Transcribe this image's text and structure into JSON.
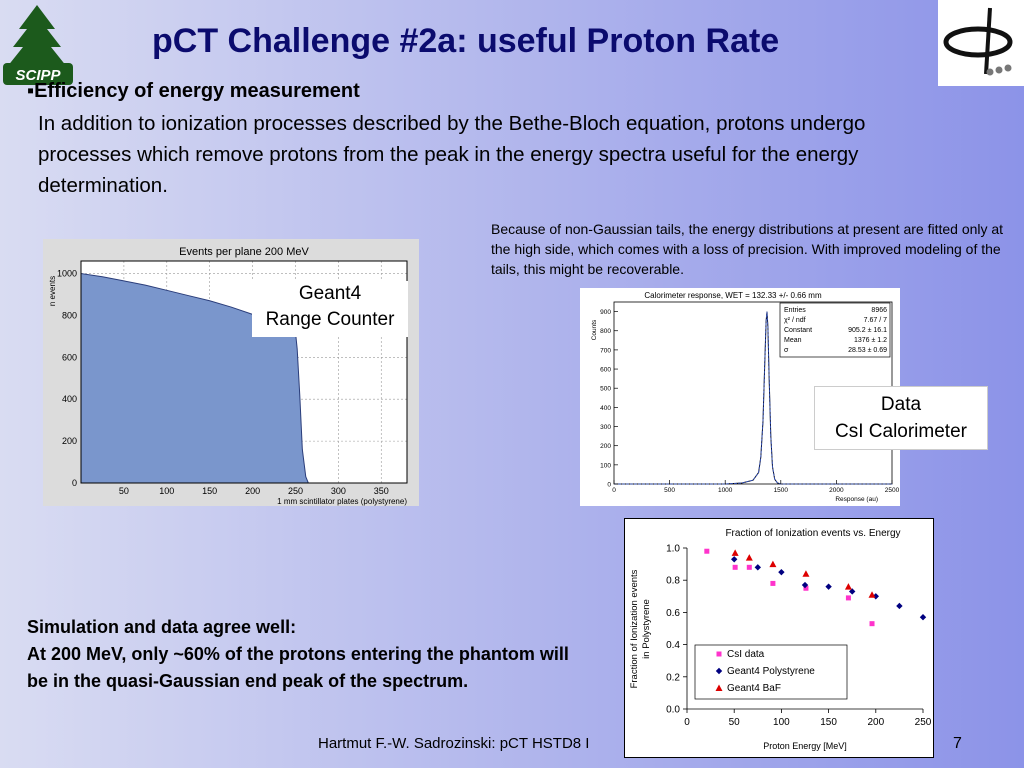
{
  "slide": {
    "title": "pCT Challenge #2a: useful Proton Rate",
    "bullet_marker": "▪",
    "bullet_heading": "Efficiency of energy measurement",
    "bullet_body": "In addition to ionization processes described by the Bethe-Bloch equation, protons undergo processes which remove protons from the peak in the energy spectra useful for the energy determination.",
    "note": "Because of non-Gaussian tails, the energy distributions at present are fitted only at the high side, which comes with a loss of precision. With improved modeling of the tails, this might be recoverable.",
    "sim_heading": "Simulation and data agree well:",
    "sim_body": "At 200 MeV, only ~60% of the protons entering the phantom will be in the quasi-Gaussian end peak of the spectrum.",
    "footer": "Hartmut F.-W. Sadrozinski: pCT HSTD8 I",
    "page_number": "7",
    "label_geant_line1": "Geant4",
    "label_geant_line2": "Range Counter",
    "label_data_line1": "Data",
    "label_data_line2": "CsI Calorimeter",
    "logo_text": "SCIPP"
  },
  "colors": {
    "title": "#0b0b6e",
    "hist_fill": "#7a96cc",
    "csi": "#ff33cc",
    "polystyrene": "#000080",
    "baf": "#dd0000"
  },
  "chart_data": [
    {
      "type": "area",
      "title": "Events per plane 200 MeV",
      "xlabel": "1 mm scintillator plates (polystyrene)",
      "ylabel": "n events",
      "xlim": [
        0,
        380
      ],
      "ylim": [
        0,
        1060
      ],
      "xticks": [
        50,
        100,
        150,
        200,
        250,
        300,
        350
      ],
      "yticks": [
        0,
        200,
        400,
        600,
        800,
        1000
      ],
      "x": [
        0,
        25,
        50,
        75,
        100,
        125,
        150,
        175,
        200,
        225,
        240,
        250,
        252,
        255,
        258,
        262,
        265,
        380
      ],
      "y": [
        1000,
        985,
        965,
        945,
        920,
        895,
        870,
        840,
        805,
        770,
        745,
        720,
        640,
        420,
        160,
        30,
        0,
        0
      ]
    },
    {
      "type": "line",
      "title": "Calorimeter response, WET = 132.33 +/- 0.66 mm",
      "xlabel": "Response (au)",
      "ylabel": "Counts",
      "xlim": [
        0,
        2500
      ],
      "ylim": [
        0,
        950
      ],
      "xticks": [
        0,
        500,
        1000,
        1500,
        2000,
        2500
      ],
      "yticks": [
        0,
        100,
        200,
        300,
        400,
        500,
        600,
        700,
        800,
        900
      ],
      "x": [
        0,
        1000,
        1150,
        1250,
        1300,
        1320,
        1340,
        1355,
        1368,
        1376,
        1384,
        1395,
        1410,
        1425,
        1445,
        1470,
        1500,
        2500
      ],
      "y": [
        0,
        0,
        5,
        20,
        60,
        140,
        330,
        620,
        850,
        900,
        820,
        560,
        250,
        90,
        25,
        5,
        0,
        0
      ],
      "stats": [
        {
          "name": "Entries",
          "value": "8966"
        },
        {
          "name": "χ² / ndf",
          "value": "7.67 / 7"
        },
        {
          "name": "Constant",
          "value": "905.2 ± 16.1"
        },
        {
          "name": "Mean",
          "value": "1376 ± 1.2"
        },
        {
          "name": "σ",
          "value": "28.53 ± 0.69"
        }
      ]
    },
    {
      "type": "scatter",
      "title": "Fraction of Ionization events vs. Energy",
      "xlabel": "Proton Energy [MeV]",
      "ylabel": "Fraction of Ionization events in Polystyrene",
      "xlim": [
        0,
        250
      ],
      "ylim": [
        0,
        1.0
      ],
      "xticks": [
        0,
        50,
        100,
        150,
        200,
        250
      ],
      "yticks": [
        0.0,
        0.2,
        0.4,
        0.6,
        0.8,
        1.0
      ],
      "legend": "bottom-left",
      "series": [
        {
          "name": "CsI data",
          "marker": "square",
          "color": "#ff33cc",
          "x": [
            21,
            51,
            66,
            91,
            126,
            171,
            196
          ],
          "y": [
            0.98,
            0.88,
            0.88,
            0.78,
            0.75,
            0.69,
            0.53
          ]
        },
        {
          "name": "Geant4 Polystyrene",
          "marker": "diamond",
          "color": "#000080",
          "x": [
            50,
            75,
            100,
            125,
            150,
            175,
            200,
            225,
            250
          ],
          "y": [
            0.93,
            0.88,
            0.85,
            0.77,
            0.76,
            0.73,
            0.7,
            0.64,
            0.57
          ]
        },
        {
          "name": "Geant4 BaF",
          "marker": "triangle",
          "color": "#dd0000",
          "x": [
            51,
            66,
            91,
            126,
            171,
            196
          ],
          "y": [
            0.97,
            0.94,
            0.9,
            0.84,
            0.76,
            0.71
          ]
        }
      ]
    }
  ]
}
